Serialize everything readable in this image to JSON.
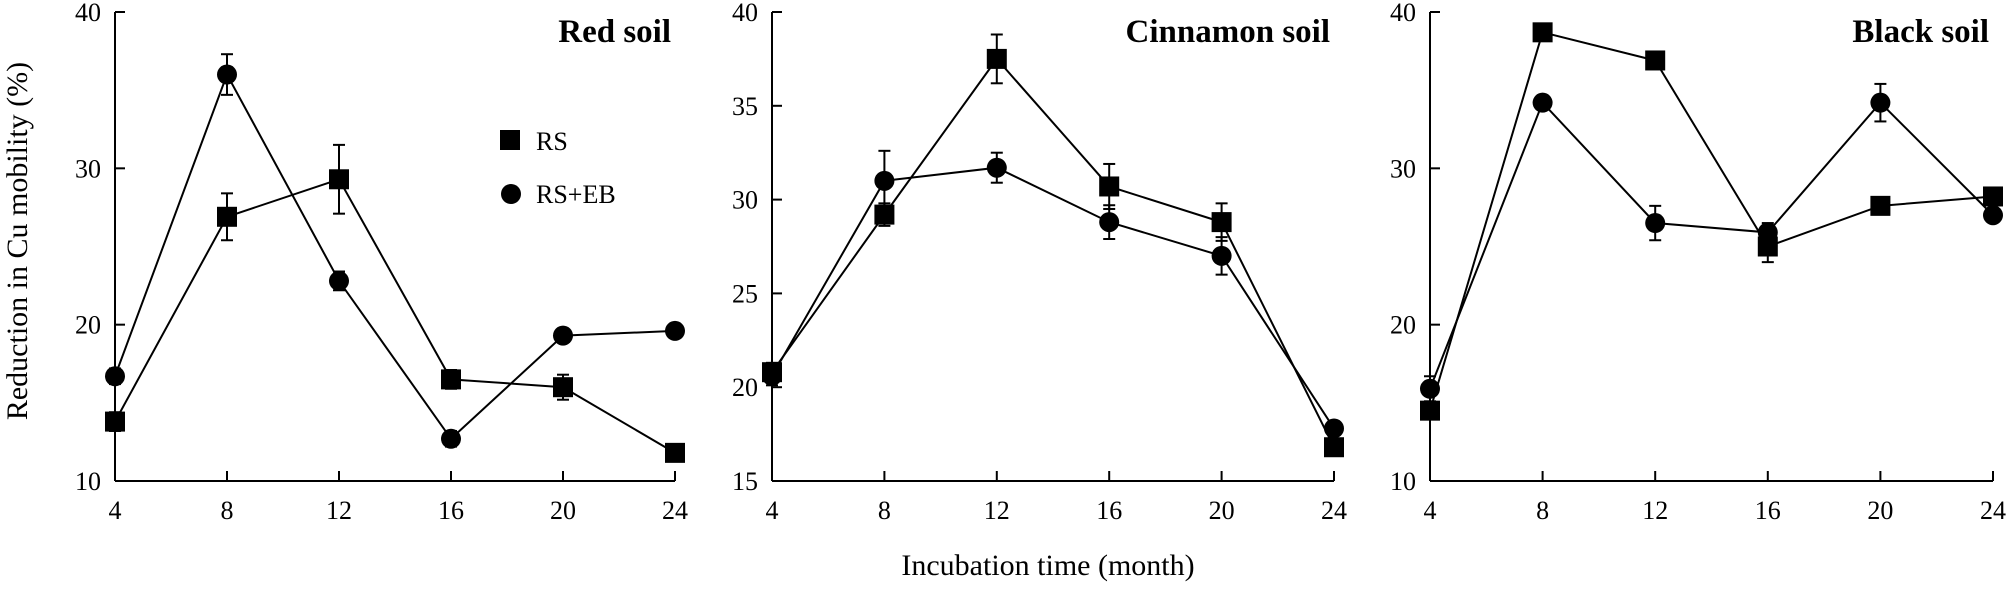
{
  "chart_data": {
    "type": "line",
    "ylabel": "Reduction in Cu mobility (%)",
    "xlabel": "Incubation time (month)",
    "x": [
      4,
      8,
      12,
      16,
      20,
      24
    ],
    "x_ticks": [
      "4",
      "8",
      "12",
      "16",
      "20",
      "24"
    ],
    "legend": {
      "placement": "inside first panel, upper-middle",
      "entries": [
        "RS",
        "RS+EB"
      ]
    },
    "panels": [
      {
        "title": "Red soil",
        "ylim": [
          10,
          40
        ],
        "y_ticks": [
          "10",
          "20",
          "30",
          "40"
        ],
        "series": [
          {
            "name": "RS",
            "marker": "square",
            "values": [
              13.8,
              26.9,
              29.3,
              16.5,
              16.0,
              11.8
            ],
            "errors": [
              0.6,
              1.5,
              2.2,
              0.6,
              0.8,
              0.5
            ]
          },
          {
            "name": "RS+EB",
            "marker": "circle",
            "values": [
              16.7,
              36.0,
              22.8,
              12.7,
              19.3,
              19.6
            ],
            "errors": [
              0.5,
              1.3,
              0.6,
              0.5,
              0.4,
              0.4
            ]
          }
        ]
      },
      {
        "title": "Cinnamon soil",
        "ylim": [
          15,
          40
        ],
        "y_ticks": [
          "15",
          "20",
          "25",
          "30",
          "35",
          "40"
        ],
        "series": [
          {
            "name": "RS",
            "marker": "square",
            "values": [
              20.8,
              29.2,
              37.5,
              30.7,
              28.8,
              16.8
            ],
            "errors": [
              0.5,
              0.6,
              1.3,
              1.2,
              1.0,
              0.4
            ]
          },
          {
            "name": "RS+EB",
            "marker": "circle",
            "values": [
              20.6,
              31.0,
              31.7,
              28.8,
              27.0,
              17.8
            ],
            "errors": [
              0.5,
              1.6,
              0.8,
              0.9,
              1.0,
              0.3
            ]
          }
        ]
      },
      {
        "title": "Black soil",
        "ylim": [
          10,
          40
        ],
        "y_ticks": [
          "10",
          "20",
          "30",
          "40"
        ],
        "series": [
          {
            "name": "RS",
            "marker": "square",
            "values": [
              14.5,
              38.7,
              36.9,
              25.0,
              27.6,
              28.2
            ],
            "errors": [
              0.5,
              0.5,
              0.5,
              1.0,
              0.4,
              0.5
            ]
          },
          {
            "name": "RS+EB",
            "marker": "circle",
            "values": [
              15.9,
              34.2,
              26.5,
              25.9,
              34.2,
              27.0
            ],
            "errors": [
              0.8,
              0.4,
              1.1,
              0.6,
              1.2,
              0.4
            ]
          }
        ]
      }
    ]
  }
}
